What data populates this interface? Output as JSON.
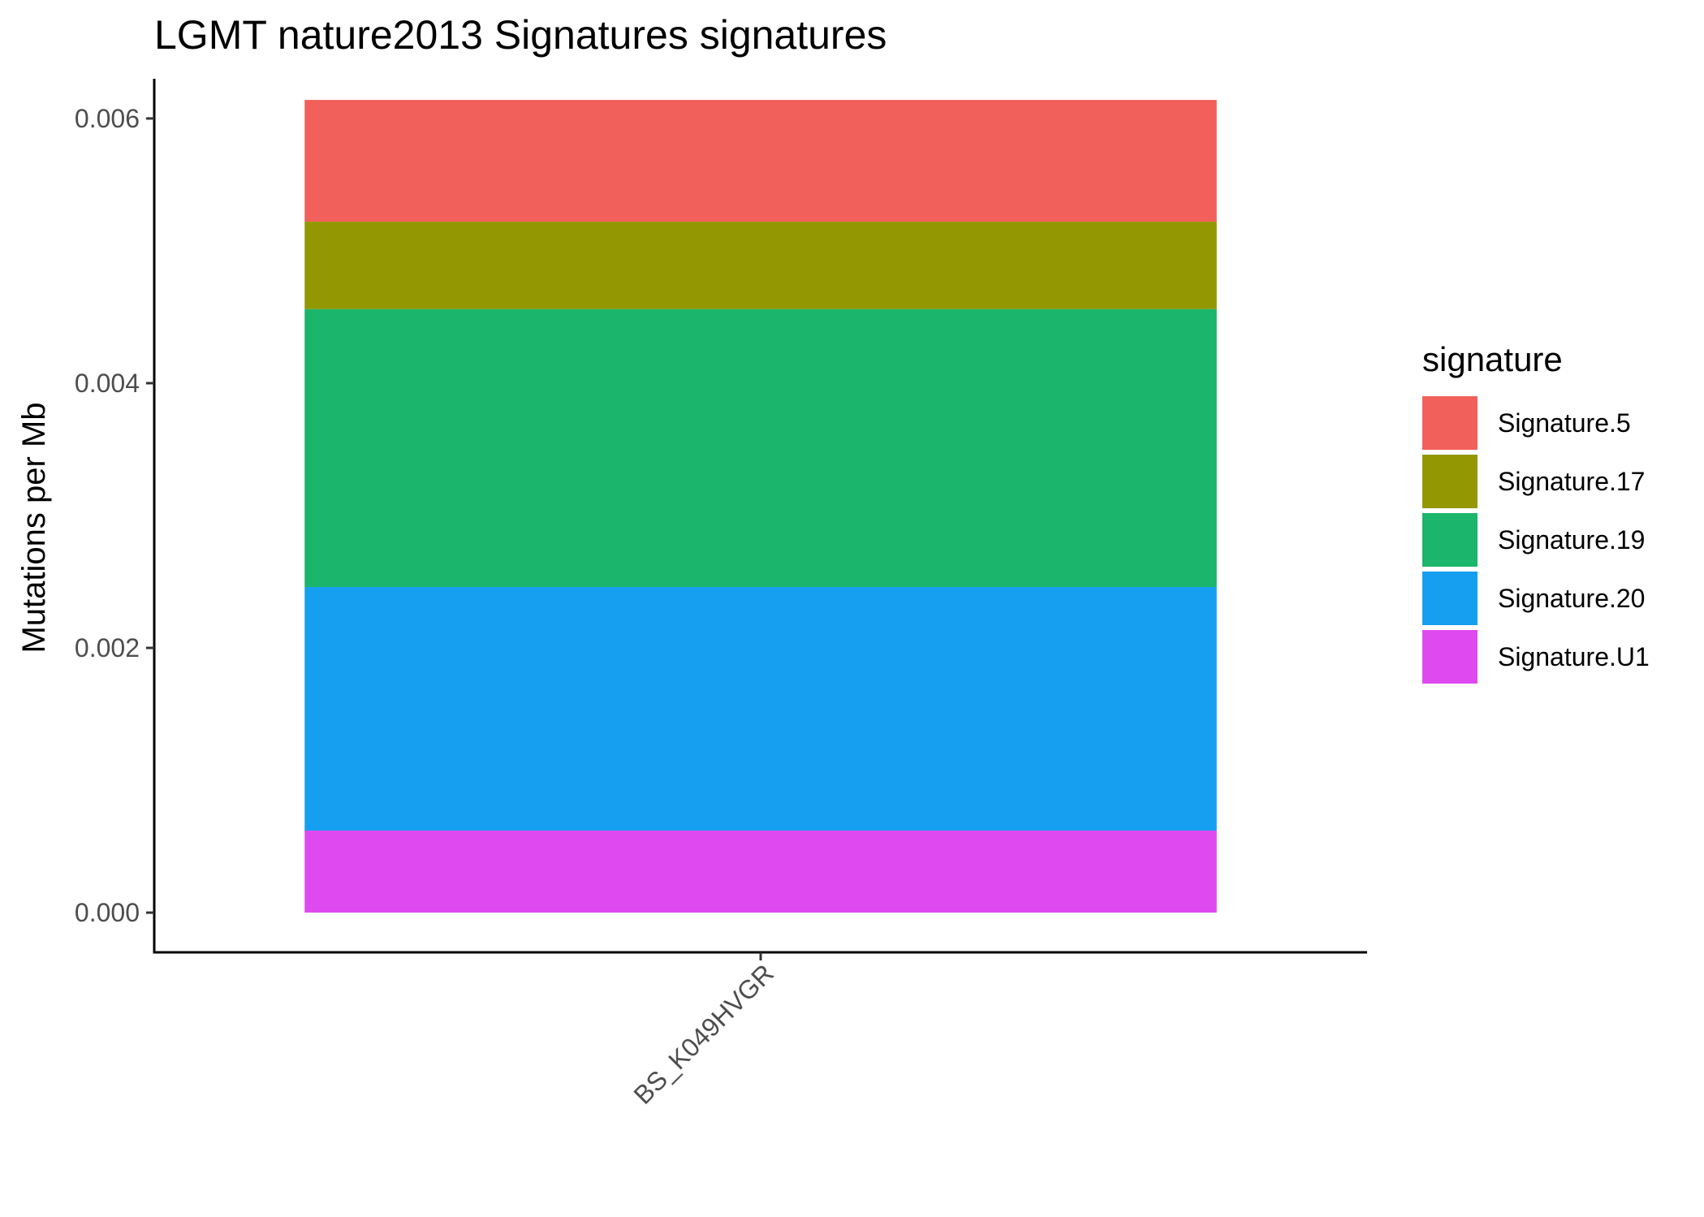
{
  "chart_data": {
    "type": "bar",
    "stacked": true,
    "title": "LGMT nature2013 Signatures signatures",
    "xlabel": "",
    "ylabel": "Mutations per Mb",
    "categories": [
      "BS_K049HVGR"
    ],
    "ylim": [
      -0.0003,
      0.0063
    ],
    "yticks": [
      0.0,
      0.002,
      0.004,
      0.006
    ],
    "ytick_labels": [
      "0.000",
      "0.002",
      "0.004",
      "0.006"
    ],
    "grid": false,
    "legend": {
      "title": "signature",
      "position": "right"
    },
    "series": [
      {
        "name": "Signature.5",
        "values": [
          0.00092
        ],
        "color": "#F2605C"
      },
      {
        "name": "Signature.17",
        "values": [
          0.00066
        ],
        "color": "#939802"
      },
      {
        "name": "Signature.19",
        "values": [
          0.0021
        ],
        "color": "#1BB56C"
      },
      {
        "name": "Signature.20",
        "values": [
          0.00184
        ],
        "color": "#169FF0"
      },
      {
        "name": "Signature.U1",
        "values": [
          0.00062
        ],
        "color": "#DF4AF0"
      }
    ]
  }
}
